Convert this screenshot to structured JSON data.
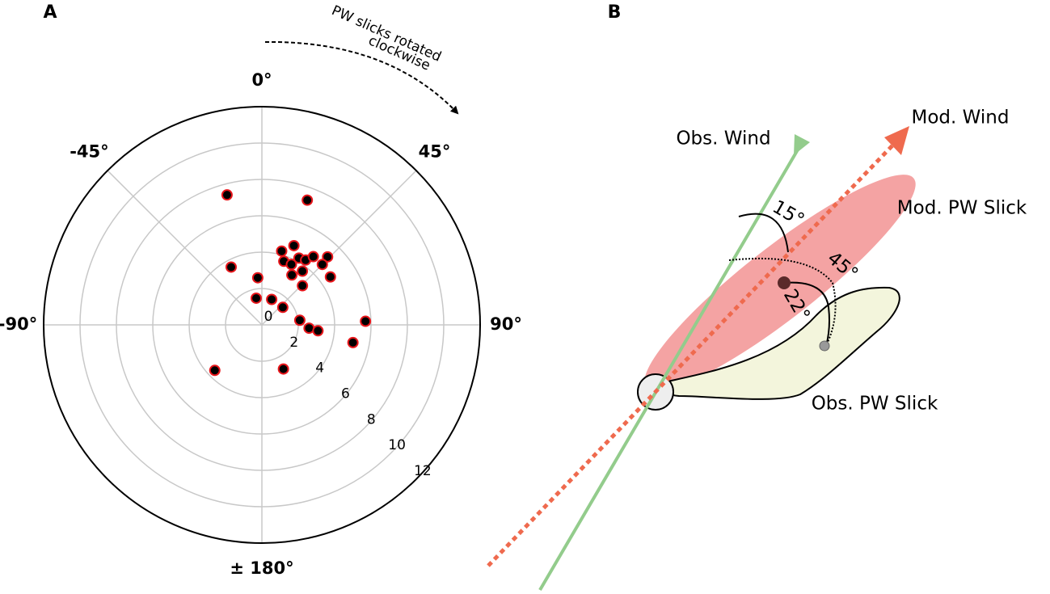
{
  "chart_data": {
    "type": "scatter",
    "projection": "polar",
    "panel_label": "A",
    "annotation": [
      "PW slicks rotated",
      "clockwise"
    ],
    "theta": [
      -15,
      20,
      15,
      22,
      19,
      26,
      29,
      34,
      37,
      44,
      45,
      37,
      31,
      55,
      46,
      -28,
      -5,
      -12,
      21,
      50,
      88,
      83,
      94,
      96,
      101,
      -134,
      154
    ],
    "r": [
      7.4,
      7.3,
      4.2,
      4.7,
      3.7,
      3.7,
      4.2,
      4.3,
      4.7,
      5.2,
      4.7,
      3.7,
      3.2,
      4.6,
      3.1,
      3.6,
      2.6,
      1.5,
      1.5,
      1.5,
      5.7,
      2.1,
      2.6,
      3.1,
      5.1,
      3.6,
      2.7
    ],
    "color": "#000000",
    "edge_color": "#e8161b",
    "rlim": [
      0,
      12
    ],
    "rticks": [
      0,
      2,
      4,
      6,
      8,
      10,
      12
    ],
    "thetaticks": [
      {
        "value": 0,
        "label": "0°"
      },
      {
        "value": 45,
        "label": "45°"
      },
      {
        "value": 90,
        "label": "90°"
      },
      {
        "value": 180,
        "label": "± 180°"
      },
      {
        "value": -90,
        "label": "-90°"
      },
      {
        "value": -45,
        "label": "-45°"
      }
    ],
    "grid": true
  },
  "diagram": {
    "panel_label": "B",
    "obs_wind": "Obs. Wind",
    "mod_wind": "Mod. Wind",
    "mod_slick": "Mod. PW Slick",
    "obs_slick": "Obs. PW Slick",
    "angle_15": "15°",
    "angle_45": "45°",
    "angle_22": "22°"
  }
}
